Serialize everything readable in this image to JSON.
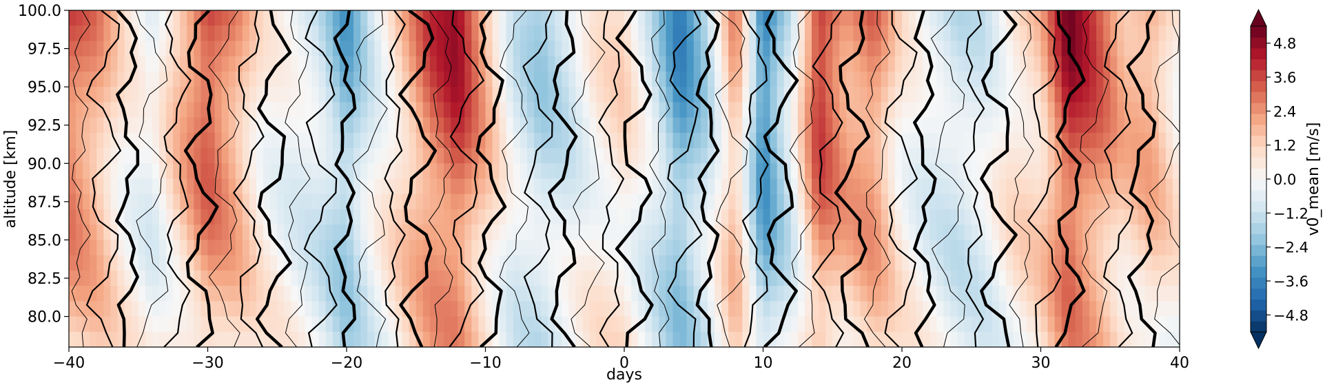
{
  "chart_data": {
    "type": "heatmap",
    "title": "",
    "xlabel": "days",
    "ylabel": "altitude [km]",
    "xlim": [
      -40,
      40
    ],
    "ylim": [
      78,
      100
    ],
    "x_ticks": [
      -40,
      -30,
      -20,
      -10,
      0,
      10,
      20,
      30,
      40
    ],
    "x_tick_labels": [
      "−40",
      "−30",
      "−20",
      "−10",
      "0",
      "10",
      "20",
      "30",
      "40"
    ],
    "y_ticks": [
      80.0,
      82.5,
      85.0,
      87.5,
      90.0,
      92.5,
      95.0,
      97.5,
      100.0
    ],
    "y_tick_labels": [
      "80.0",
      "82.5",
      "85.0",
      "87.5",
      "90.0",
      "92.5",
      "95.0",
      "97.5",
      "100.0"
    ],
    "colorbar": {
      "label": "v0_mean [m/s]",
      "colormap": "RdBu_r",
      "range": [
        -5.4,
        5.4
      ],
      "extend": "both",
      "ticks": [
        -4.8,
        -3.6,
        -2.4,
        -1.2,
        0.0,
        1.2,
        2.4,
        3.6,
        4.8
      ],
      "tick_labels": [
        "−4.8",
        "−3.6",
        "−2.4",
        "−1.2",
        "0.0",
        "1.2",
        "2.4",
        "3.6",
        "4.8"
      ]
    },
    "day_profile": {
      "x": [
        -40,
        -38,
        -36,
        -34,
        -32,
        -30,
        -28,
        -26,
        -24,
        -22,
        -20,
        -18,
        -16,
        -14,
        -12,
        -10,
        -8,
        -6,
        -4,
        -2,
        0,
        2,
        4,
        6,
        8,
        10,
        12,
        14,
        16,
        18,
        20,
        22,
        24,
        26,
        28,
        30,
        32,
        34,
        36,
        38,
        40
      ],
      "values": [
        3.5,
        2.5,
        0.5,
        -0.5,
        1.8,
        3.8,
        2.5,
        0.4,
        -0.3,
        -1.0,
        -2.8,
        -0.5,
        1.5,
        3.5,
        4.5,
        2.0,
        -0.8,
        -1.8,
        -1.0,
        0.5,
        1.0,
        -1.0,
        -3.5,
        -1.5,
        2.5,
        -4.0,
        -1.0,
        4.2,
        2.5,
        3.0,
        0.5,
        -0.6,
        -1.2,
        -0.8,
        0.8,
        1.5,
        4.8,
        3.5,
        1.8,
        2.2,
        0.5
      ]
    },
    "contour_overlay": {
      "color": "black",
      "line_styles": [
        "thin",
        "medium",
        "thick"
      ]
    }
  },
  "colors": {
    "axis": "#000000",
    "background": "#ffffff"
  }
}
